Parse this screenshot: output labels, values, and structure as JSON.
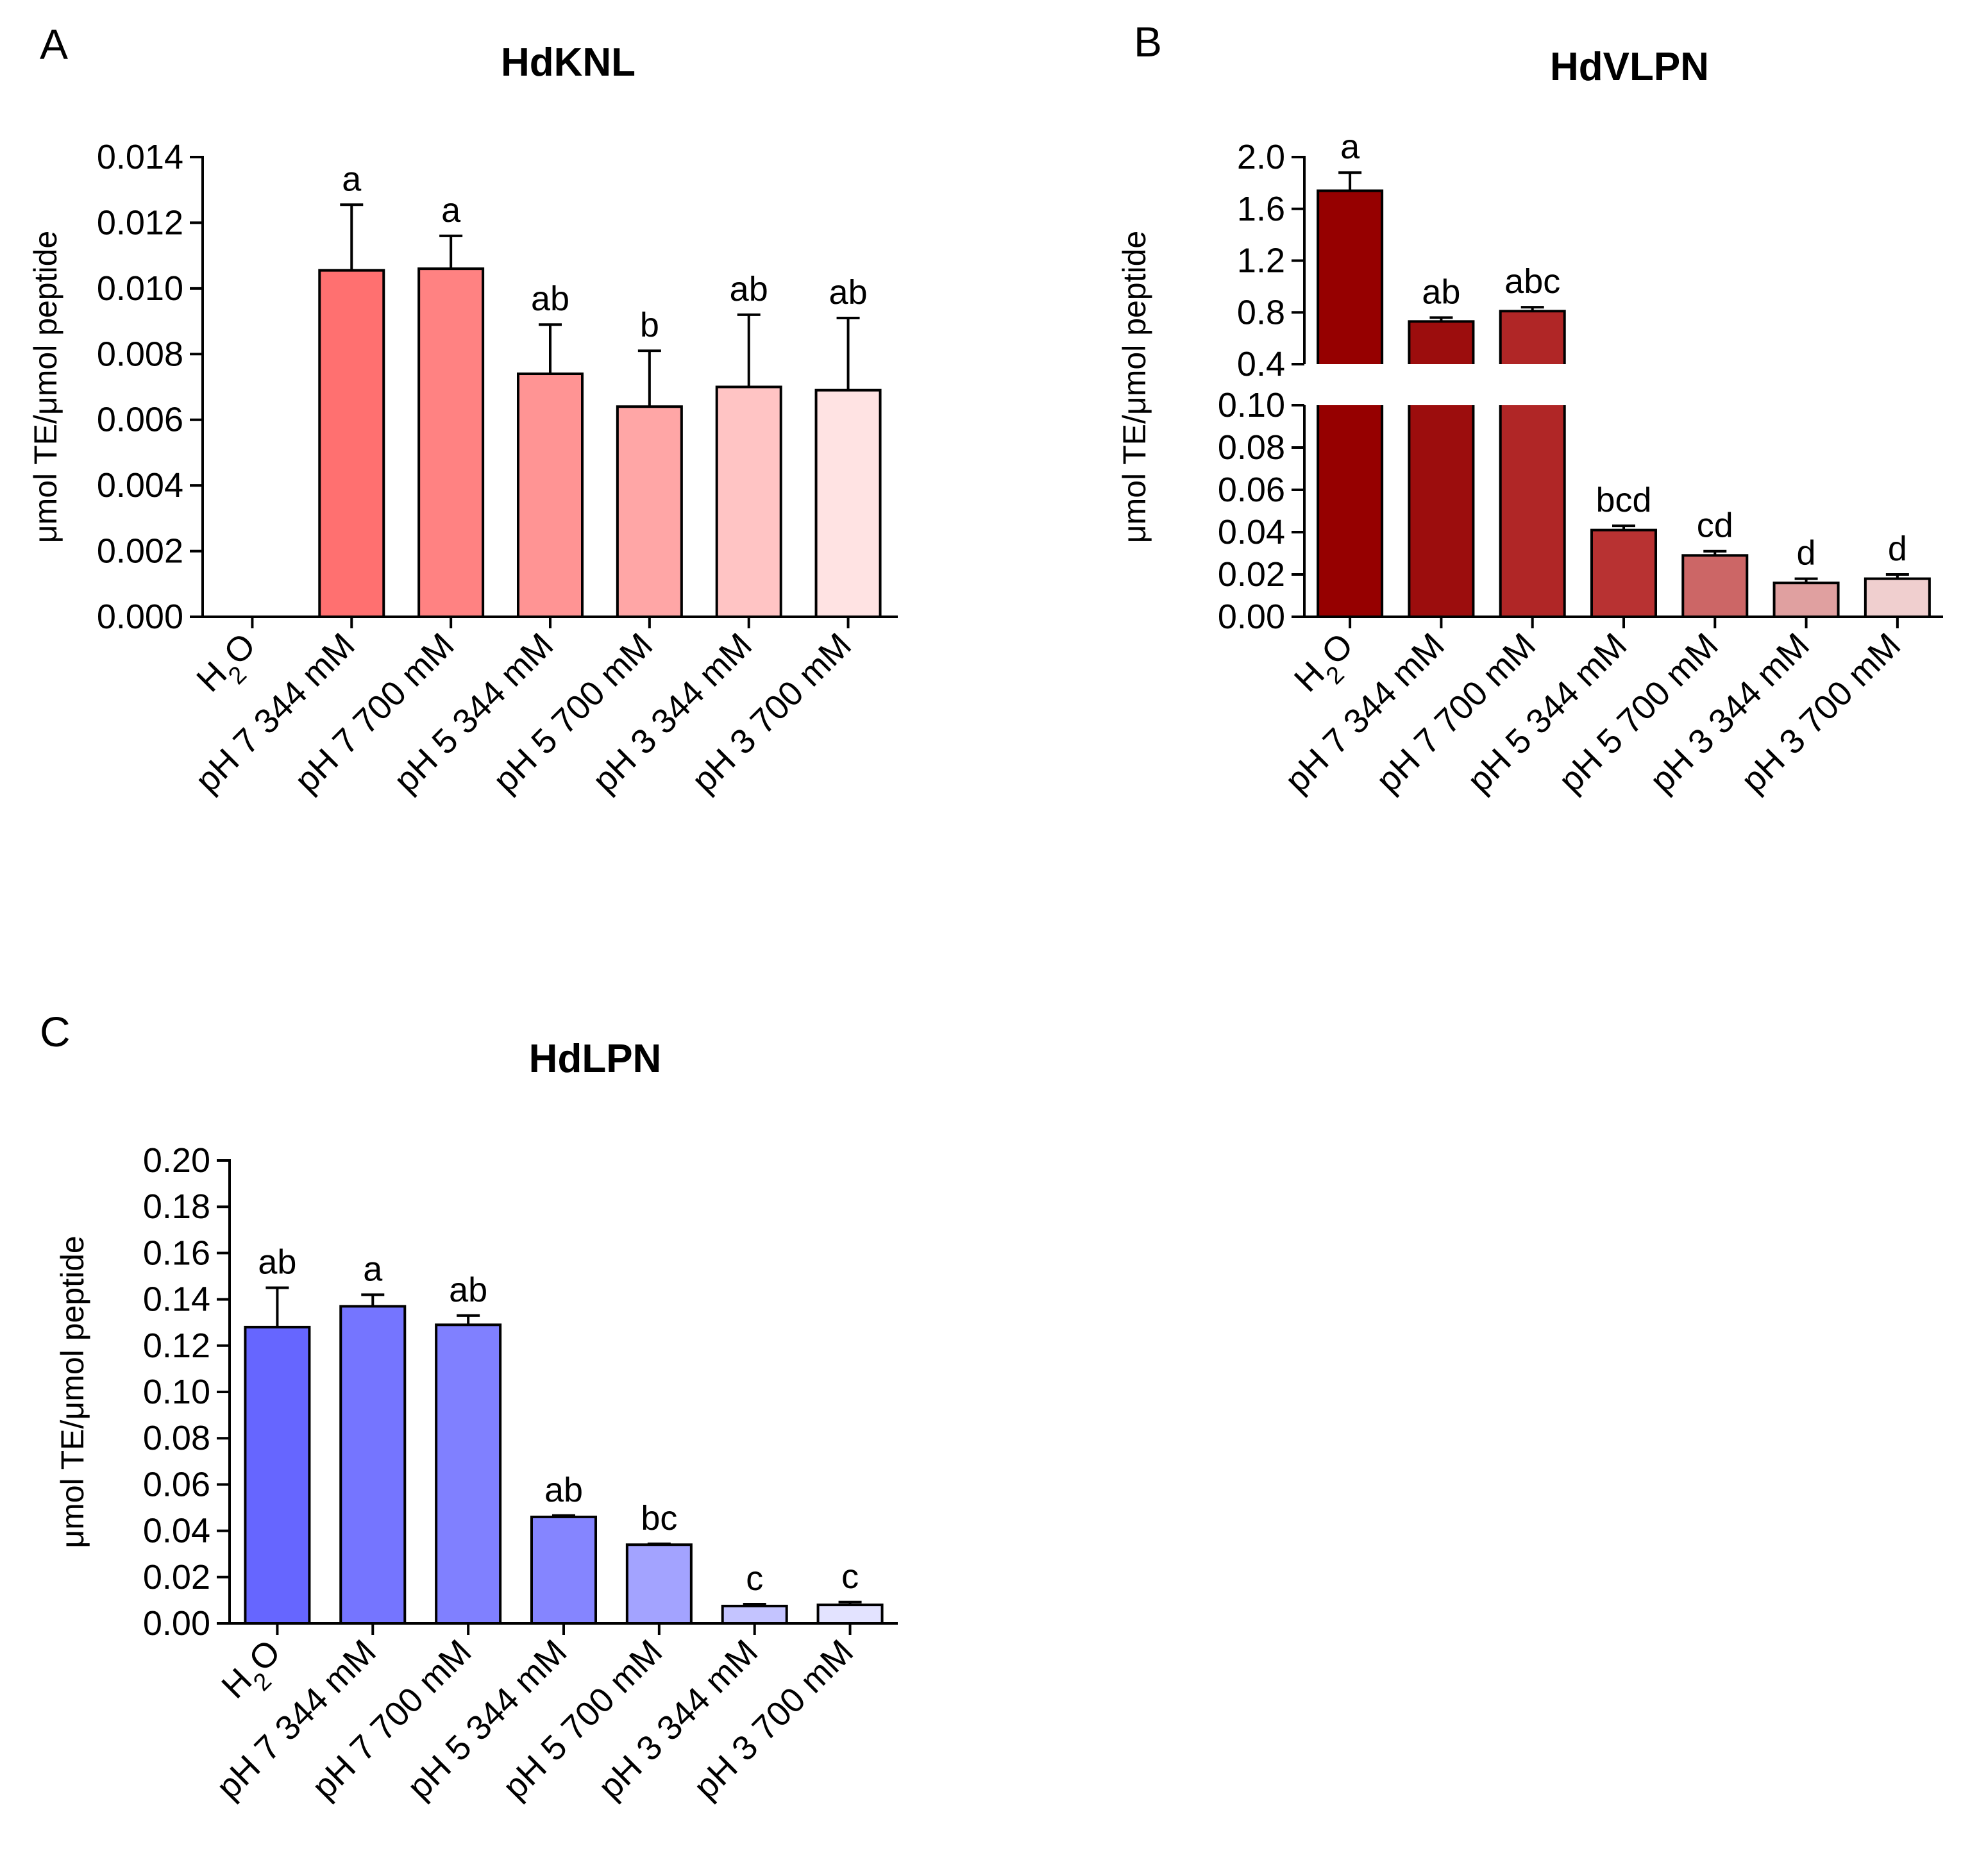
{
  "categories": [
    "H2O",
    "pH 7 344 mM",
    "pH 7 700 mM",
    "pH 5 344 mM",
    "pH 5 700 mM",
    "pH 3 344 mM",
    "pH 3 700 mM"
  ],
  "chart_data": [
    {
      "panel": "A",
      "type": "bar",
      "title": "HdKNL",
      "ylabel": "μmol TE/μmol peptide",
      "xlabel": "",
      "ylim": [
        0,
        0.014
      ],
      "yticks": [
        "0.000",
        "0.002",
        "0.004",
        "0.006",
        "0.008",
        "0.010",
        "0.012",
        "0.014"
      ],
      "values": [
        0,
        0.01055,
        0.0106,
        0.0074,
        0.0064,
        0.007,
        0.0069
      ],
      "errors": [
        0,
        0.002,
        0.001,
        0.0015,
        0.0017,
        0.0022,
        0.0022
      ],
      "letters": [
        "",
        "a",
        "a",
        "ab",
        "b",
        "ab",
        "ab"
      ],
      "colors": [
        "#ff7070",
        "#ff7070",
        "#ff8282",
        "#ff9494",
        "#ffa6a6",
        "#ffc4c4",
        "#ffe3e3"
      ]
    },
    {
      "panel": "B",
      "type": "bar",
      "title": "HdVLPN",
      "ylabel": "μmol TE/μmol peptide",
      "xlabel": "",
      "axis_break": true,
      "ylim_lower": [
        0,
        0.1
      ],
      "ylim_upper": [
        0.4,
        2.0
      ],
      "yticks_lower": [
        "0.00",
        "0.02",
        "0.04",
        "0.06",
        "0.08",
        "0.10"
      ],
      "yticks_upper": [
        "0.4",
        "0.8",
        "1.2",
        "1.6",
        "2.0"
      ],
      "values": [
        1.74,
        0.73,
        0.81,
        0.041,
        0.029,
        0.016,
        0.018
      ],
      "errors": [
        0.14,
        0.03,
        0.03,
        0.002,
        0.002,
        0.002,
        0.002
      ],
      "letters": [
        "a",
        "ab",
        "abc",
        "bcd",
        "cd",
        "d",
        "d"
      ],
      "colors": [
        "#960000",
        "#9c0d0d",
        "#b02626",
        "#b83232",
        "#cc6666",
        "#e0a0a0",
        "#f0cfcf"
      ]
    },
    {
      "panel": "C",
      "type": "bar",
      "title": "HdLPN",
      "ylabel": "μmol TE/μmol peptide",
      "xlabel": "",
      "ylim": [
        0,
        0.2
      ],
      "yticks": [
        "0.00",
        "0.02",
        "0.04",
        "0.06",
        "0.08",
        "0.10",
        "0.12",
        "0.14",
        "0.16",
        "0.18",
        "0.20"
      ],
      "values": [
        0.128,
        0.137,
        0.129,
        0.046,
        0.034,
        0.0075,
        0.008
      ],
      "errors": [
        0.017,
        0.005,
        0.004,
        0.0006,
        0.0004,
        0.0008,
        0.0012
      ],
      "letters": [
        "ab",
        "a",
        "ab",
        "ab",
        "bc",
        "c",
        "c"
      ],
      "colors": [
        "#6666ff",
        "#7575ff",
        "#8080ff",
        "#8585ff",
        "#a3a3ff",
        "#c4c4ff",
        "#e3e3ff"
      ]
    }
  ]
}
